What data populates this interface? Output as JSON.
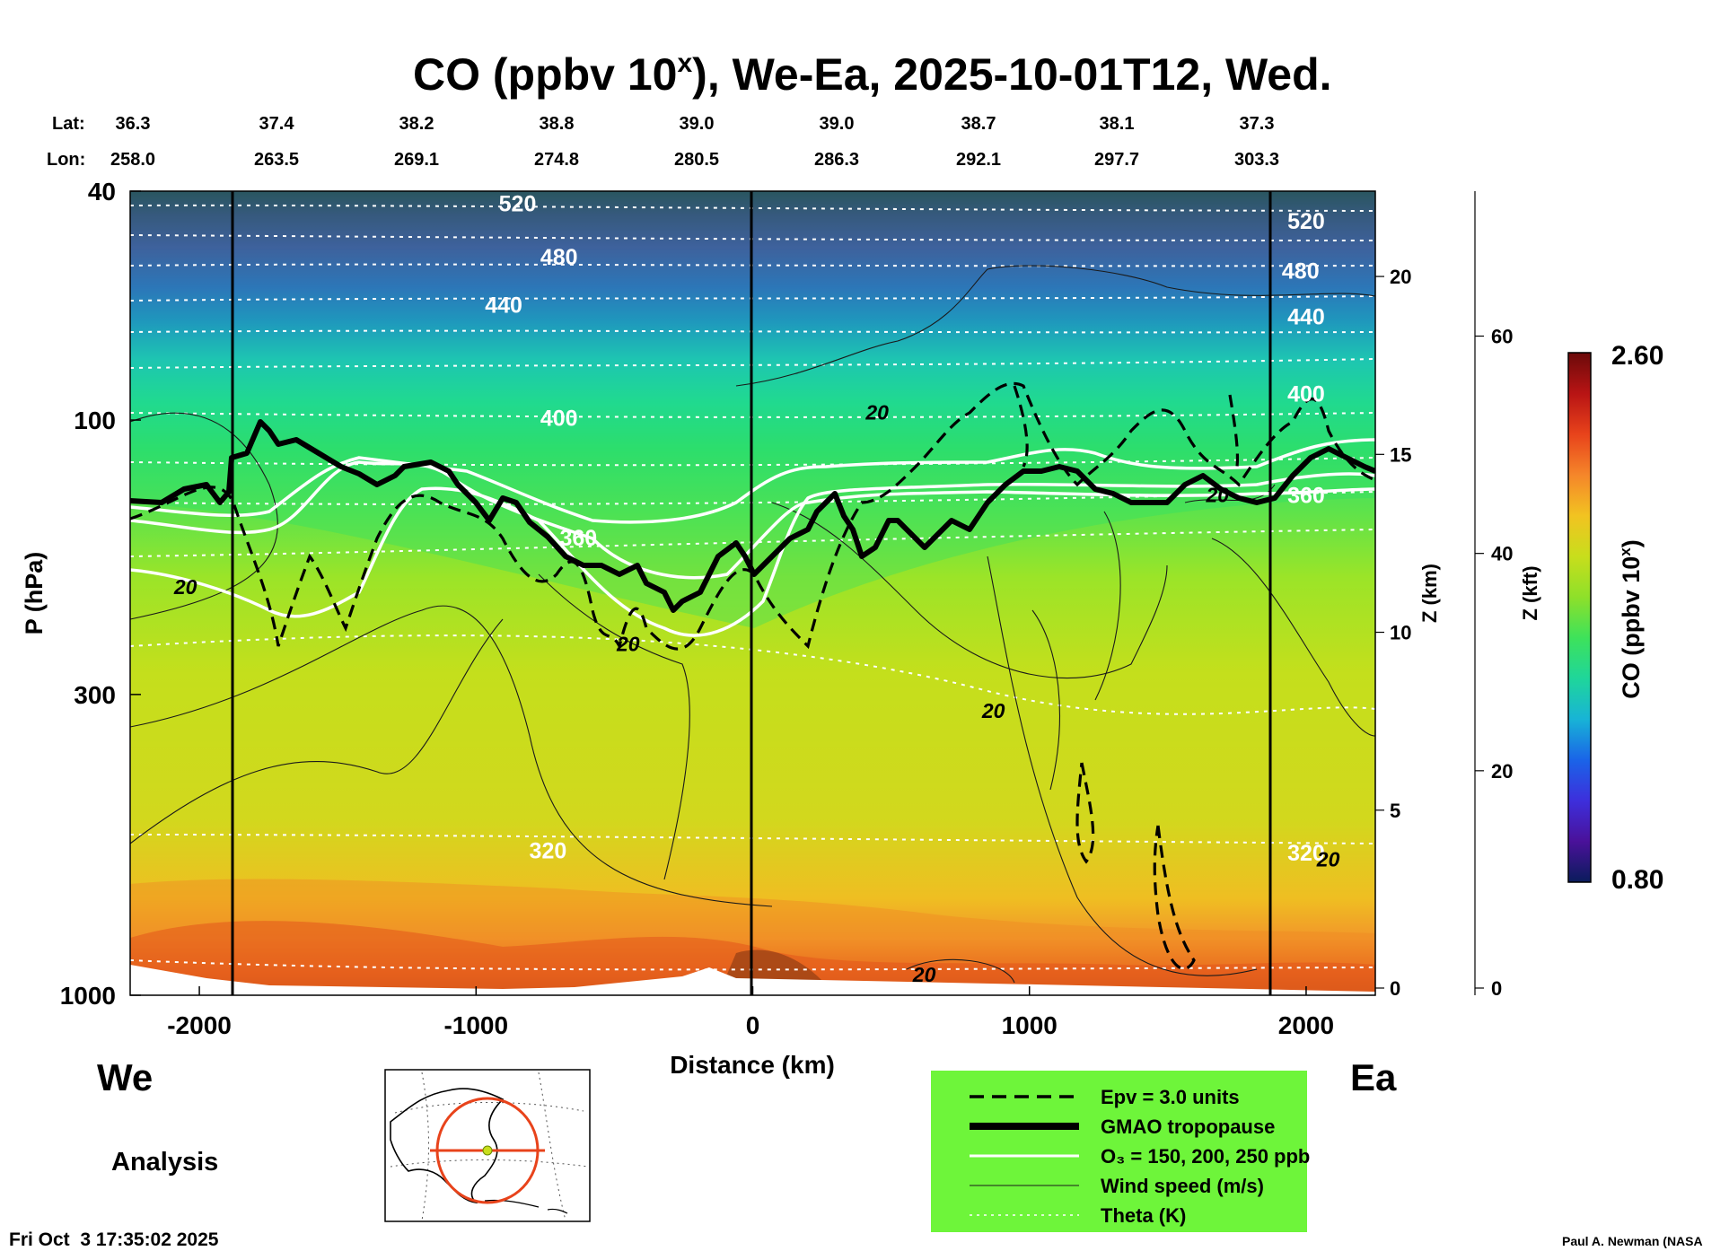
{
  "header": {
    "title_main": "CO (ppbv 10",
    "title_sup": "x",
    "title_rest": "), We-Ea, 2025-10-01T12, Wed."
  },
  "coords": {
    "lat_label": "Lat:",
    "lon_label": "Lon:",
    "lat": [
      "36.3",
      "37.4",
      "38.2",
      "38.8",
      "39.0",
      "39.0",
      "38.7",
      "38.1",
      "37.3"
    ],
    "lon": [
      "258.0",
      "263.5",
      "269.1",
      "274.8",
      "280.5",
      "286.3",
      "292.1",
      "297.7",
      "303.3"
    ]
  },
  "footer": {
    "west": "We",
    "east": "Ea",
    "analysis": "Analysis",
    "timestamp": "Fri Oct  3 17:35:02 2025",
    "credit": "Paul A. Newman (NASA"
  },
  "colorbar": {
    "label_main": "CO (ppbv 10",
    "label_sup": "x",
    "label_rest": ")",
    "max": "2.60",
    "min": "0.80",
    "stops": [
      "#6b0a0a",
      "#b81414",
      "#e8431b",
      "#f5862a",
      "#f2c321",
      "#c8de1c",
      "#8ee02a",
      "#3ee25a",
      "#1fd69a",
      "#18b4d6",
      "#1a64e8",
      "#3d2fdc",
      "#4a119a",
      "#0a1c5c"
    ]
  },
  "legend": {
    "bg_color": "#6ef53a",
    "items": [
      {
        "style": "dashed",
        "label": "Epv = 3.0 units"
      },
      {
        "style": "thick",
        "label": "GMAO tropopause"
      },
      {
        "style": "white",
        "label": "O₃ = 150, 200, 250 ppb"
      },
      {
        "style": "thin",
        "label": "Wind speed (m/s)"
      },
      {
        "style": "dotted",
        "label": "Theta (K)"
      }
    ]
  },
  "chart_data": {
    "type": "heatmap",
    "title": "CO (ppbv 10^x), We-Ea, 2025-10-01T12, Wed.",
    "xlabel": "Distance (km)",
    "ylabel": "P (hPa)",
    "y2label": "Z (km)",
    "y3label": "Z (kft)",
    "xlim": [
      -2250,
      2250
    ],
    "ylim_hpa": [
      1000,
      40
    ],
    "y_scale": "log",
    "x_ticks": [
      "-2000",
      "-1000",
      "0",
      "1000",
      "2000"
    ],
    "x_tick_values": [
      -2000,
      -1000,
      0,
      1000,
      2000
    ],
    "y_ticks": [
      "40",
      "100",
      "300",
      "1000"
    ],
    "y_tick_values": [
      40,
      100,
      300,
      1000
    ],
    "z_km_ticks": [
      "0",
      "5",
      "10",
      "15",
      "20"
    ],
    "z_kft_ticks": [
      "0",
      "20",
      "40",
      "60"
    ],
    "colorbar_range": [
      0.8,
      2.6
    ],
    "colorbar_label": "CO (ppbv 10^x)",
    "vertical_lines_km": [
      -1850,
      0,
      1850
    ],
    "theta_labels": [
      {
        "text": "520",
        "x": -850,
        "p": 42
      },
      {
        "text": "480",
        "x": -700,
        "p": 52
      },
      {
        "text": "440",
        "x": -900,
        "p": 63
      },
      {
        "text": "400",
        "x": -700,
        "p": 99
      },
      {
        "text": "360",
        "x": -630,
        "p": 160
      },
      {
        "text": "320",
        "x": -740,
        "p": 560
      },
      {
        "text": "520",
        "x": 2000,
        "p": 45
      },
      {
        "text": "480",
        "x": 1980,
        "p": 55
      },
      {
        "text": "440",
        "x": 2000,
        "p": 66
      },
      {
        "text": "400",
        "x": 2000,
        "p": 90
      },
      {
        "text": "360",
        "x": 2000,
        "p": 135
      },
      {
        "text": "320",
        "x": 2000,
        "p": 565
      }
    ],
    "wind_labels": [
      {
        "text": "20",
        "x": -2050,
        "p": 195
      },
      {
        "text": "20",
        "x": 450,
        "p": 97
      },
      {
        "text": "20",
        "x": 1680,
        "p": 135
      },
      {
        "text": "20",
        "x": -450,
        "p": 245
      },
      {
        "text": "20",
        "x": 870,
        "p": 320
      },
      {
        "text": "20",
        "x": 2080,
        "p": 580
      },
      {
        "text": "20",
        "x": 620,
        "p": 920
      }
    ]
  }
}
